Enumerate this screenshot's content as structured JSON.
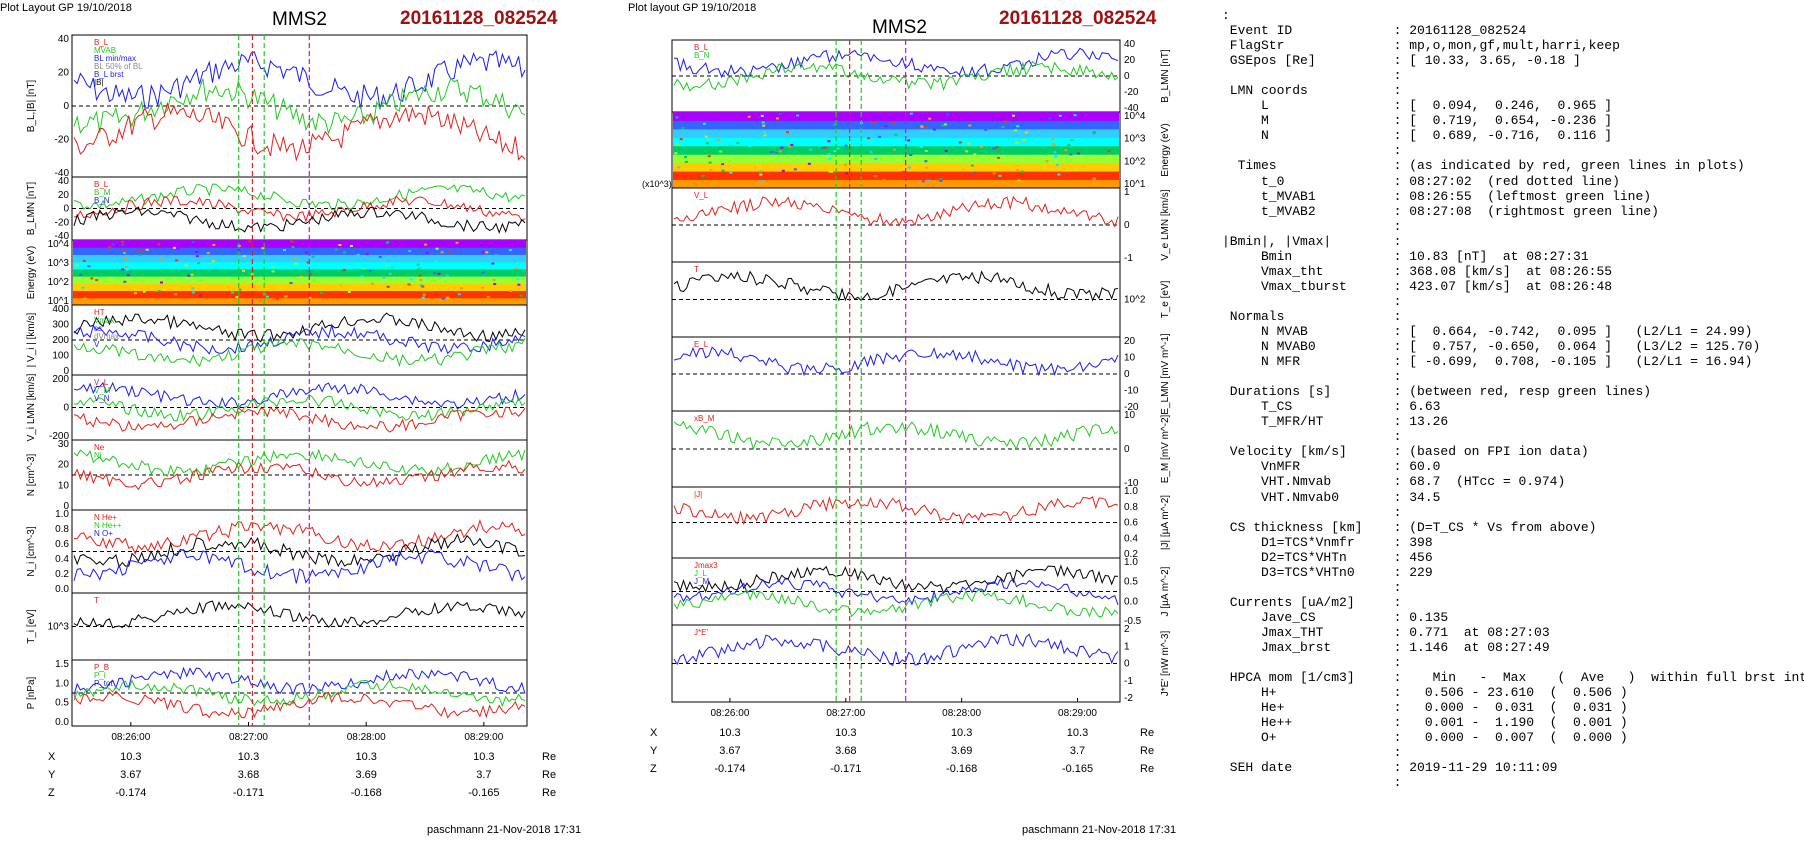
{
  "header": {
    "left_layout": "Plot Layout GP 19/10/2018",
    "mid_layout": "Plot layout GP 19/10/2018",
    "left_sc": "MMS2",
    "mid_sc": "MMS2",
    "left_event": "20161128_082524",
    "mid_event": "20161128_082524"
  },
  "footer": {
    "left": "paschmann 21-Nov-2018 17:31",
    "mid": "paschmann 21-Nov-2018 17:31"
  },
  "colors": {
    "red": "#e8201a",
    "green": "#1fcc1f",
    "blue": "#1a1aff",
    "magenta": "#e000e0",
    "black": "#000000",
    "gray": "#888888",
    "event_red": "#a01010"
  },
  "time_axis": {
    "ticks": [
      "08:26:00",
      "08:27:00",
      "08:28:00",
      "08:29:00"
    ],
    "markers": {
      "t_0": "08:27:02",
      "t_MVAB1": "08:26:55",
      "t_MVAB2": "08:27:08",
      "Bmin": "08:27:31"
    }
  },
  "coords": {
    "rows": [
      {
        "label": "X",
        "values": [
          "10.3",
          "10.3",
          "10.3",
          "10.3"
        ],
        "unit": "Re"
      },
      {
        "label": "Y",
        "values": [
          "3.67",
          "3.68",
          "3.69",
          "3.7"
        ],
        "unit": "Re"
      },
      {
        "label": "Z",
        "values": [
          "-0.174",
          "-0.171",
          "-0.168",
          "-0.165"
        ],
        "unit": "Re"
      }
    ]
  },
  "chart_data": [
    {
      "type": "line",
      "column": "left",
      "panels": [
        {
          "ylabel": "B_L,|B| [nT]",
          "yticks": [
            "40",
            "20",
            "0",
            "-20",
            "-40"
          ],
          "legend": [
            "B_L",
            "MVAB",
            "BL min/max",
            "BL 50% of BL",
            "B_L brst",
            "|B|"
          ]
        },
        {
          "ylabel": "B_LMN [nT]",
          "yticks": [
            "40",
            "20",
            "0",
            "-20",
            "-40"
          ],
          "legend": [
            "B_L",
            "B_M",
            "B_N"
          ]
        },
        {
          "type": "heatmap",
          "ylabel": "Energy (eV)",
          "yticks": [
            "10^4",
            "10^3",
            "10^2",
            "10^1"
          ]
        },
        {
          "ylabel": "| V_i | [km/s]",
          "yticks": [
            "400",
            "300",
            "200",
            "100",
            "0"
          ],
          "legend": [
            "HT",
            "Vmax",
            "cs",
            "dVmax",
            "V"
          ]
        },
        {
          "ylabel": "V_i LMN [km/s]",
          "yticks": [
            "200",
            "0",
            "-200"
          ],
          "legend": [
            "V_L",
            "V_M",
            "V_N"
          ]
        },
        {
          "ylabel": "N [cm^-3]",
          "yticks": [
            "30",
            "20",
            "10",
            "0"
          ],
          "legend": [
            "Ne",
            "Ni"
          ]
        },
        {
          "ylabel": "N_i [cm^-3]",
          "yticks": [
            "1.0",
            "0.8",
            "0.6",
            "0.4",
            "0.2",
            "0.0"
          ],
          "legend": [
            "N He+",
            "N He++",
            "N O+"
          ]
        },
        {
          "ylabel": "T_i [eV]",
          "yticks": [
            "10^3"
          ],
          "legend": [
            "T"
          ]
        },
        {
          "ylabel": "P [nPa]",
          "yticks": [
            "1.5",
            "1.0",
            "0.5",
            "0.0"
          ],
          "legend": [
            "P_B",
            "P_i",
            "P_tot"
          ]
        }
      ]
    },
    {
      "type": "line",
      "column": "middle",
      "panels": [
        {
          "ylabel": "B_LMN [nT]",
          "yticks": [
            "40",
            "20",
            "0",
            "-20",
            "-40"
          ],
          "legend": [
            "B_L",
            "B_N"
          ]
        },
        {
          "type": "heatmap",
          "ylabel": "Energy (eV)",
          "yticks": [
            "10^4",
            "10^3",
            "10^2",
            "10^1"
          ]
        },
        {
          "ylabel": "V_e LMN [km/s]",
          "yticks": [
            "1",
            "0",
            "-1"
          ],
          "multiplier": "(x10^3)",
          "legend": [
            "V_L"
          ]
        },
        {
          "ylabel": "T_e [eV]",
          "yticks": [
            "10^2"
          ],
          "legend": [
            "T"
          ]
        },
        {
          "ylabel": "E_LMN [mV m^-1]",
          "yticks": [
            "20",
            "10",
            "0",
            "-10",
            "-20"
          ],
          "legend": [
            "E_L"
          ]
        },
        {
          "ylabel": "E_M [mV m^-2]",
          "yticks": [
            "10",
            "0",
            "-10"
          ],
          "legend": [
            "xB_M"
          ]
        },
        {
          "ylabel": "|J| [µA m^-2]",
          "yticks": [
            "1.0",
            "0.8",
            "0.6",
            "0.4",
            "0.2"
          ],
          "legend": [
            "|J|"
          ]
        },
        {
          "ylabel": "J [µA m^-2]",
          "yticks": [
            "1.0",
            "0.5",
            "0.0",
            "-0.5"
          ],
          "legend": [
            "Jmax3",
            "J_L",
            "J_M"
          ]
        },
        {
          "ylabel": "J*E' [nW m^-3]",
          "yticks": [
            "2",
            "1",
            "0",
            "-1",
            "-2"
          ],
          "legend": [
            "J*E'"
          ]
        }
      ]
    }
  ],
  "info_text": ":\n Event ID             : 20161128_082524\n FlagStr              : mp,o,mon,gf,mult,harri,keep\n GSEpos [Re]          : [ 10.33, 3.65, -0.18 ]\n                      :\n LMN coords           :\n     L                : [  0.094,  0.246,  0.965 ]\n     M                : [  0.719,  0.654, -0.236 ]\n     N                : [  0.689, -0.716,  0.116 ]\n                      :\n  Times               : (as indicated by red, green lines in plots)\n     t_0              : 08:27:02  (red dotted line)\n     t_MVAB1          : 08:26:55  (leftmost green line)\n     t_MVAB2          : 08:27:08  (rightmost green line)\n                      :\n|Bmin|, |Vmax|        :\n     Bmin             : 10.83 [nT]  at 08:27:31\n     Vmax_tht         : 368.08 [km/s]  at 08:26:55\n     Vmax_tburst      : 423.07 [km/s]  at 08:26:48\n                      :\n Normals              :\n     N MVAB           : [  0.664, -0.742,  0.095 ]   (L2/L1 = 24.99)\n     N MVAB0          : [  0.757, -0.650,  0.064 ]   (L3/L2 = 125.70)\n     N MFR            : [ -0.699,  0.708, -0.105 ]   (L2/L1 = 16.94)\n                      :\n Durations [s]        : (between red, resp green lines)\n     T_CS             : 6.63\n     T_MFR/HT         : 13.26\n                      :\n Velocity [km/s]      : (based on FPI ion data)\n     VnMFR            : 60.0\n     VHT.Nmvab        : 68.7  (HTcc = 0.974)\n     VHT.Nmvab0       : 34.5\n                      :\n CS thickness [km]    : (D=T_CS * Vs from above)\n     D1=TCS*Vnmfr     : 398\n     D2=TCS*VHTn      : 456\n     D3=TCS*VHTn0     : 229\n                      :\n Currents [uA/m2]     :\n     Jave_CS          : 0.135\n     Jmax_THT         : 0.771  at 08:27:03\n     Jmax_brst        : 1.146  at 08:27:49\n                      :\n HPCA mom [1/cm3]     :    Min   -  Max    (  Ave   )  within full brst int\n     H+               :   0.506 - 23.610  (  0.506 )\n     He+              :   0.000 -  0.031  (  0.031 )\n     He++             :   0.001 -  1.190  (  0.001 )\n     O+               :   0.000 -  0.007  (  0.000 )\n                      :\n SEH date             : 2019-11-29 10:11:09\n                      :"
}
